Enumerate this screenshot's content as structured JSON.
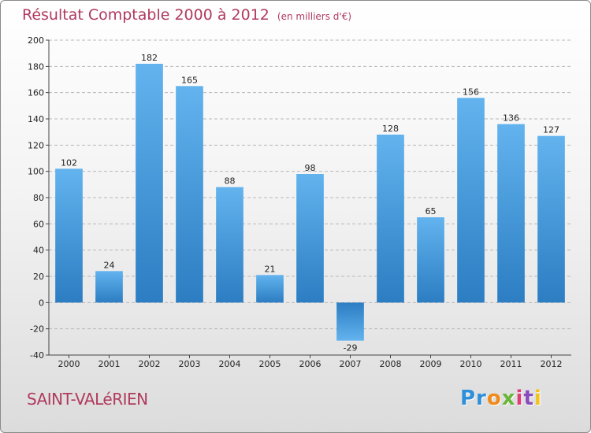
{
  "title": "Résultat Comptable 2000 à 2012",
  "subtitle": "(en milliers d'€)",
  "commune": "SAINT-VALéRIEN",
  "logo": {
    "parts": [
      "Pr",
      "o",
      "x",
      "i",
      "t",
      "i"
    ]
  },
  "chart_data": {
    "type": "bar",
    "title": "Résultat Comptable 2000 à 2012",
    "subtitle": "(en milliers d'€)",
    "xlabel": "",
    "ylabel": "",
    "categories": [
      "2000",
      "2001",
      "2002",
      "2003",
      "2004",
      "2005",
      "2006",
      "2007",
      "2008",
      "2009",
      "2010",
      "2011",
      "2012"
    ],
    "values": [
      102,
      24,
      182,
      165,
      88,
      21,
      98,
      -29,
      128,
      65,
      156,
      136,
      127
    ],
    "ylim": [
      -40,
      200
    ],
    "yticks": [
      -40,
      -20,
      0,
      20,
      40,
      60,
      80,
      100,
      120,
      140,
      160,
      180,
      200
    ],
    "grid": "horizontal dashed",
    "bar_color_light": "#62b3ee",
    "bar_color_dark": "#2c7dc2"
  }
}
